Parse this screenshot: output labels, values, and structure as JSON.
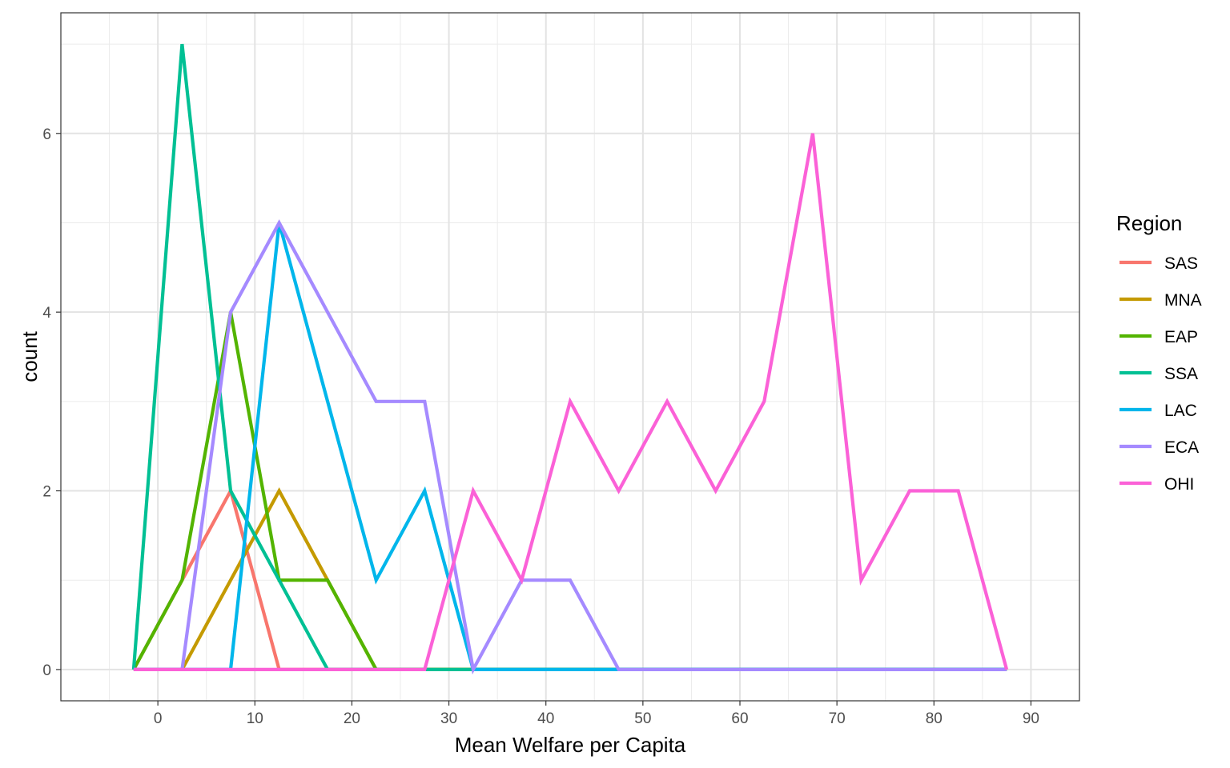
{
  "chart_data": {
    "type": "line",
    "title": "",
    "xlabel": "Mean Welfare per Capita",
    "ylabel": "count",
    "xlim": [
      -10,
      95
    ],
    "ylim": [
      -0.35,
      7.35
    ],
    "x_ticks": [
      0,
      10,
      20,
      30,
      40,
      50,
      60,
      70,
      80,
      90
    ],
    "y_ticks": [
      0,
      2,
      4,
      6
    ],
    "x_tick_labels": [
      "0",
      "10",
      "20",
      "30",
      "40",
      "50",
      "60",
      "70",
      "80",
      "90"
    ],
    "y_tick_labels": [
      "0",
      "2",
      "4",
      "6"
    ],
    "grid": true,
    "legend": {
      "title": "Region",
      "position": "right"
    },
    "x": [
      -2.5,
      2.5,
      7.5,
      12.5,
      17.5,
      22.5,
      27.5,
      32.5,
      37.5,
      42.5,
      47.5,
      52.5,
      57.5,
      62.5,
      67.5,
      72.5,
      77.5,
      82.5,
      87.5
    ],
    "series": [
      {
        "name": "SAS",
        "color": "#F8766D",
        "values": [
          0,
          1,
          2,
          0,
          0,
          0,
          0,
          0,
          0,
          0,
          0,
          0,
          0,
          0,
          0,
          0,
          0,
          0,
          0
        ]
      },
      {
        "name": "MNA",
        "color": "#C49A00",
        "values": [
          0,
          0,
          1,
          2,
          1,
          0,
          0,
          0,
          0,
          0,
          0,
          0,
          0,
          0,
          0,
          0,
          0,
          0,
          0
        ]
      },
      {
        "name": "EAP",
        "color": "#53B400",
        "values": [
          0,
          1,
          4,
          1,
          1,
          0,
          0,
          0,
          0,
          0,
          0,
          0,
          0,
          0,
          0,
          0,
          0,
          0,
          0
        ]
      },
      {
        "name": "SSA",
        "color": "#00C094",
        "values": [
          0,
          7,
          2,
          1,
          0,
          0,
          0,
          0,
          0,
          0,
          0,
          0,
          0,
          0,
          0,
          0,
          0,
          0,
          0
        ]
      },
      {
        "name": "LAC",
        "color": "#00B6EB",
        "values": [
          0,
          0,
          0,
          5,
          3,
          1,
          2,
          0,
          0,
          0,
          0,
          0,
          0,
          0,
          0,
          0,
          0,
          0,
          0
        ]
      },
      {
        "name": "ECA",
        "color": "#A58AFF",
        "values": [
          0,
          0,
          4,
          5,
          4,
          3,
          3,
          0,
          1,
          1,
          0,
          0,
          0,
          0,
          0,
          0,
          0,
          0,
          0
        ]
      },
      {
        "name": "OHI",
        "color": "#FB61D7",
        "values": [
          0,
          0,
          0,
          0,
          0,
          0,
          0,
          2,
          1,
          3,
          2,
          3,
          2,
          3,
          6,
          1,
          2,
          2,
          0
        ]
      }
    ]
  }
}
